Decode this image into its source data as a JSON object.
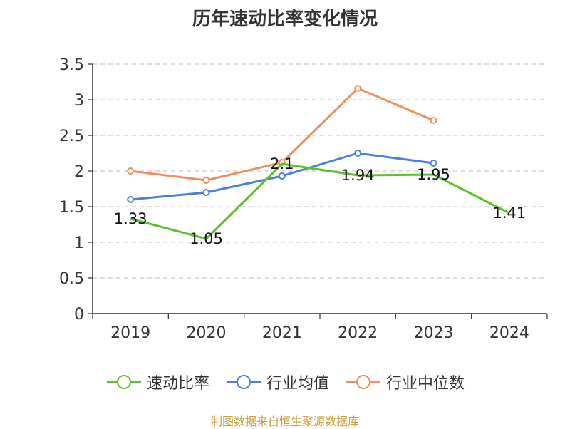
{
  "chart_data": {
    "type": "line",
    "title": "历年速动比率变化情况",
    "categories": [
      "2019",
      "2020",
      "2021",
      "2022",
      "2023",
      "2024"
    ],
    "ylim": [
      0,
      3.5
    ],
    "yticks": [
      "0",
      "0.5",
      "1",
      "1.5",
      "2",
      "2.5",
      "3",
      "3.5"
    ],
    "grid": true,
    "legend_position": "bottom",
    "series": [
      {
        "name": "速动比率",
        "color": "#5cc22b",
        "values": [
          1.33,
          1.05,
          2.1,
          1.94,
          1.95,
          1.41
        ],
        "labels": [
          "1.33",
          "1.05",
          "2.1",
          "1.94",
          "1.95",
          "1.41"
        ]
      },
      {
        "name": "行业均值",
        "color": "#4a7fdb",
        "values": [
          1.6,
          1.7,
          1.93,
          2.25,
          2.11,
          null
        ]
      },
      {
        "name": "行业中位数",
        "color": "#f28e5a",
        "values": [
          2.0,
          1.87,
          2.12,
          3.16,
          2.71,
          null
        ]
      }
    ],
    "source": "制图数据来自恒生聚源数据库"
  }
}
